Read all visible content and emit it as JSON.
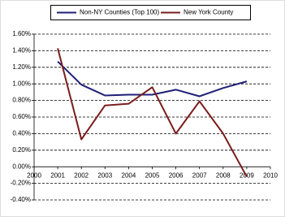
{
  "chart_data": {
    "type": "line",
    "x": [
      2001,
      2002,
      2003,
      2004,
      2005,
      2006,
      2007,
      2008,
      2009
    ],
    "series": [
      {
        "name": "Non-NY Counties (Top 100)",
        "color": "#1f1f78",
        "values": [
          1.27,
          0.99,
          0.86,
          0.87,
          0.87,
          0.93,
          0.85,
          0.95,
          1.03
        ]
      },
      {
        "name": "New York County",
        "color": "#7a1c1c",
        "values": [
          1.43,
          0.33,
          0.74,
          0.76,
          0.96,
          0.4,
          0.79,
          0.4,
          -0.12
        ]
      }
    ],
    "xlim": [
      2000,
      2010
    ],
    "xticks": [
      2000,
      2001,
      2002,
      2003,
      2004,
      2005,
      2006,
      2007,
      2008,
      2009,
      2010
    ],
    "ylim": [
      -0.4,
      1.6
    ],
    "yticks": [
      {
        "value": -0.4,
        "label": "-0.40%"
      },
      {
        "value": -0.2,
        "label": "-0.20%"
      },
      {
        "value": 0,
        "label": "0.00%"
      },
      {
        "value": 0.2,
        "label": "0.20%"
      },
      {
        "value": 0.4,
        "label": "0.40%"
      },
      {
        "value": 0.6,
        "label": "0.60%"
      },
      {
        "value": 0.8,
        "label": "0.80%"
      },
      {
        "value": 1.0,
        "label": "1.00%"
      },
      {
        "value": 1.2,
        "label": "1.20%"
      },
      {
        "value": 1.4,
        "label": "1.40%"
      },
      {
        "value": 1.6,
        "label": "1.60%"
      }
    ],
    "grid": true,
    "legend": "top"
  }
}
